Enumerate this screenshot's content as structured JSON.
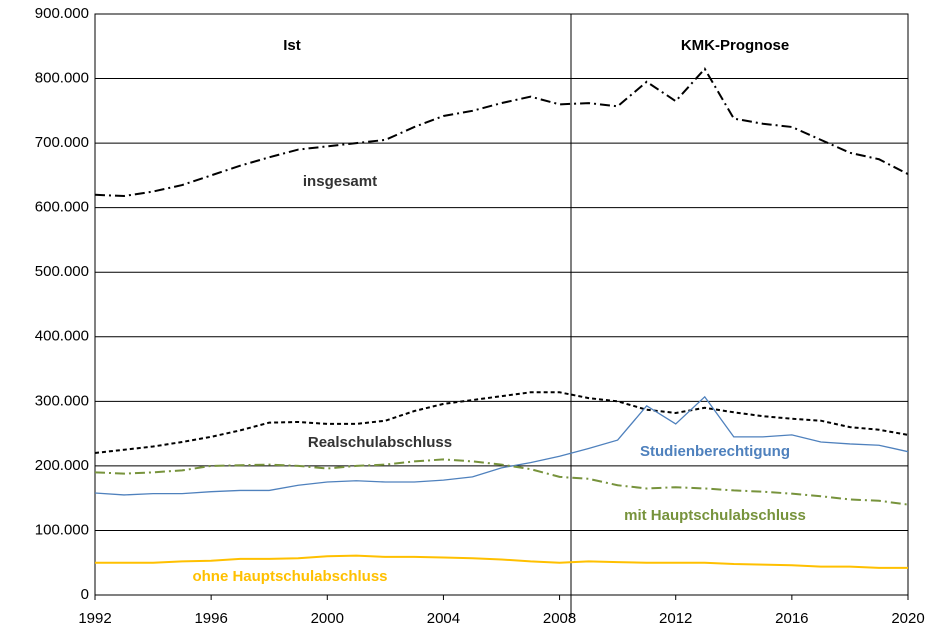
{
  "chart_data": {
    "type": "line",
    "annotations": [
      "Ist",
      "KMK-Prognose"
    ],
    "x": [
      1992,
      1993,
      1994,
      1995,
      1996,
      1997,
      1998,
      1999,
      2000,
      2001,
      2002,
      2003,
      2004,
      2005,
      2006,
      2007,
      2008,
      2009,
      2010,
      2011,
      2012,
      2013,
      2014,
      2015,
      2016,
      2017,
      2018,
      2019,
      2020
    ],
    "xlim": [
      1992,
      2020
    ],
    "xticks": [
      1992,
      1996,
      2000,
      2004,
      2008,
      2012,
      2016,
      2020
    ],
    "ylim": [
      0,
      900000
    ],
    "yticks": [
      0,
      {
        "value": 100000,
        "label": "100.000"
      },
      {
        "value": 200000,
        "label": "200.000"
      },
      {
        "value": 300000,
        "label": "300.000"
      },
      {
        "value": 400000,
        "label": "400.000"
      },
      {
        "value": 500000,
        "label": "500.000"
      },
      {
        "value": 600000,
        "label": "600.000"
      },
      {
        "value": 700000,
        "label": "700.000"
      },
      {
        "value": 800000,
        "label": "800.000"
      },
      {
        "value": 900000,
        "label": "900.000"
      }
    ],
    "grid": true,
    "series": [
      {
        "name": "insgesamt",
        "color": "#000000",
        "line_style": "dashdot",
        "values": [
          620000,
          618000,
          625000,
          635000,
          650000,
          665000,
          678000,
          690000,
          695000,
          700000,
          705000,
          725000,
          742000,
          750000,
          762000,
          772000,
          760000,
          762000,
          757000,
          795000,
          765000,
          815000,
          738000,
          730000,
          725000,
          705000,
          685000,
          675000,
          652000
        ]
      },
      {
        "name": "Realschulabschluss",
        "color": "#000000",
        "line_style": "dashed",
        "values": [
          220000,
          225000,
          230000,
          237000,
          245000,
          255000,
          267000,
          268000,
          265000,
          265000,
          270000,
          285000,
          296000,
          302000,
          308000,
          314000,
          314000,
          305000,
          300000,
          287000,
          282000,
          290000,
          283000,
          277000,
          273000,
          270000,
          260000,
          256000,
          248000
        ]
      },
      {
        "name": "Studienberechtigung",
        "color": "#4f81bd",
        "line_style": "solid",
        "values": [
          158000,
          155000,
          157000,
          157000,
          160000,
          162000,
          162000,
          170000,
          175000,
          177000,
          175000,
          175000,
          178000,
          183000,
          197000,
          205000,
          215000,
          227000,
          240000,
          293000,
          265000,
          307000,
          245000,
          245000,
          248000,
          237000,
          234000,
          232000,
          222000
        ]
      },
      {
        "name": "mit Hauptschulabschluss",
        "color": "#77933c",
        "line_style": "dashdot",
        "values": [
          190000,
          188000,
          190000,
          193000,
          200000,
          201000,
          202000,
          200000,
          196000,
          200000,
          202000,
          207000,
          210000,
          207000,
          202000,
          195000,
          183000,
          180000,
          170000,
          165000,
          167000,
          165000,
          162000,
          160000,
          157000,
          153000,
          148000,
          146000,
          140000
        ]
      },
      {
        "name": "ohne Hauptschulabschluss",
        "color": "#ffc000",
        "line_style": "solid",
        "values": [
          50000,
          50000,
          50000,
          52000,
          53000,
          56000,
          56000,
          57000,
          60000,
          61000,
          59000,
          59000,
          58000,
          57000,
          55000,
          52000,
          50000,
          52000,
          51000,
          50000,
          50000,
          50000,
          48000,
          47000,
          46000,
          44000,
          44000,
          42000,
          42000
        ]
      }
    ]
  }
}
